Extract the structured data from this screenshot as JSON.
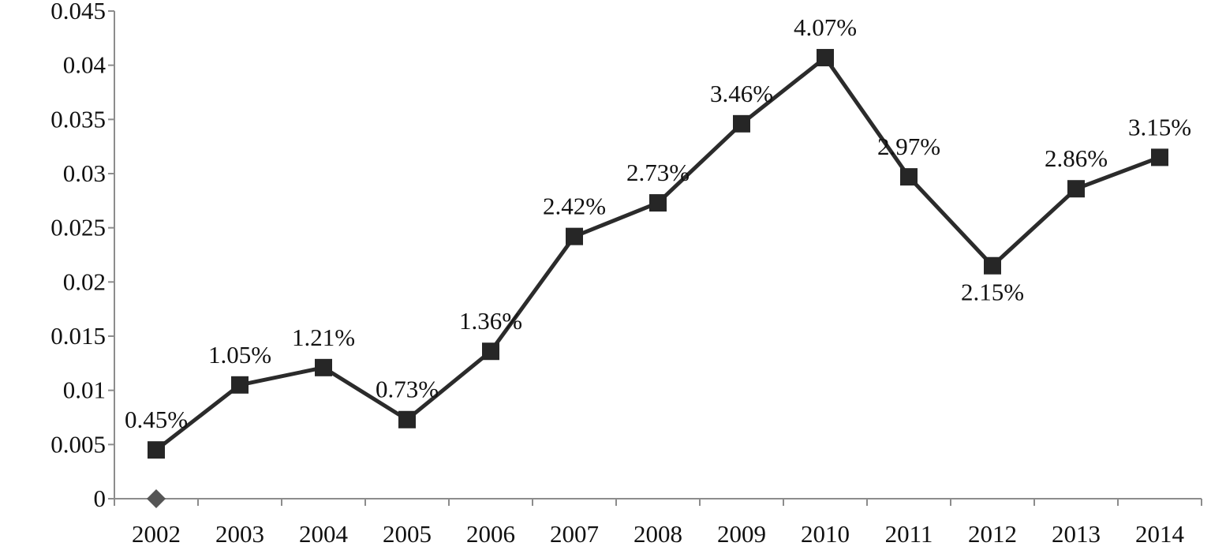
{
  "chart_data": {
    "type": "line",
    "title": "",
    "xlabel": "",
    "ylabel": "",
    "categories": [
      "2002",
      "2003",
      "2004",
      "2005",
      "2006",
      "2007",
      "2008",
      "2009",
      "2010",
      "2011",
      "2012",
      "2013",
      "2014"
    ],
    "series": [
      {
        "values": [
          0.0045,
          0.0105,
          0.0121,
          0.0073,
          0.0136,
          0.0242,
          0.0273,
          0.0346,
          0.0407,
          0.0297,
          0.0215,
          0.0286,
          0.0315
        ],
        "data_labels": [
          "0.45%",
          "1.05%",
          "1.21%",
          "0.73%",
          "1.36%",
          "2.42%",
          "2.73%",
          "3.46%",
          "4.07%",
          "2.97%",
          "2.15%",
          "2.86%",
          "3.15%"
        ],
        "marker": "square",
        "color": "#2b2b2b"
      }
    ],
    "baseline_marker": {
      "category": "2002",
      "value": 0,
      "shape": "diamond",
      "color": "#555555"
    },
    "ylim": [
      0,
      0.045
    ],
    "yticks": [
      "0",
      "0.005",
      "0.01",
      "0.015",
      "0.02",
      "0.025",
      "0.03",
      "0.035",
      "0.04",
      "0.045"
    ],
    "grid": false,
    "legend": "none"
  }
}
